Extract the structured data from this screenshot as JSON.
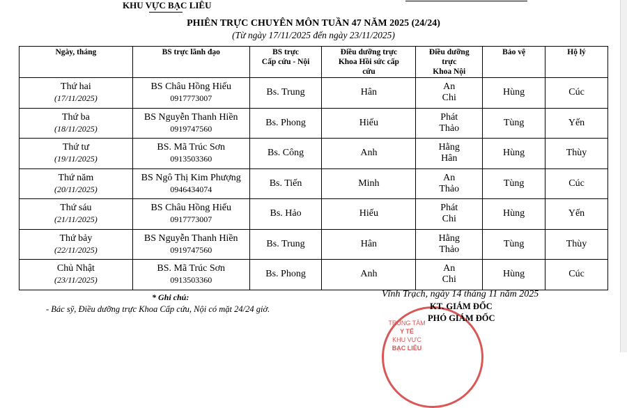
{
  "header": {
    "org": "KHU VỰC BẠC LIÊU",
    "title": "PHIÊN TRỰC CHUYÊN MÔN TUẦN 47 NĂM 2025 (24/24)",
    "subtitle": "(Từ ngày 17/11/2025 đến ngày 23/11/2025)"
  },
  "table": {
    "columns": [
      [
        "Ngày, tháng"
      ],
      [
        "BS trực lãnh đạo"
      ],
      [
        "BS trực",
        "Cấp cứu - Nội"
      ],
      [
        "Điều dưỡng trực",
        "Khoa Hồi sức cấp",
        "cứu"
      ],
      [
        "Điều dưỡng",
        "trực",
        "Khoa Nội"
      ],
      [
        "Bảo vệ"
      ],
      [
        "Hộ lý"
      ]
    ],
    "rows": [
      {
        "day": "Thứ hai",
        "date": "(17/11/2025)",
        "leader": "BS Châu Hồng Hiếu",
        "phone": "0917773007",
        "doctor": "Bs. Trung",
        "icu_nurse": "Hân",
        "nurse1": "An",
        "nurse2": "Chi",
        "guard": "Hùng",
        "aide": "Cúc"
      },
      {
        "day": "Thứ ba",
        "date": "(18/11/2025)",
        "leader": "BS Nguyễn Thanh Hiền",
        "phone": "0919747560",
        "doctor": "Bs. Phong",
        "icu_nurse": "Hiếu",
        "nurse1": "Phát",
        "nurse2": "Thảo",
        "guard": "Tùng",
        "aide": "Yến"
      },
      {
        "day": "Thứ tư",
        "date": "(19/11/2025)",
        "leader": "BS. Mã Trúc Sơn",
        "phone": "0913503360",
        "doctor": "Bs. Công",
        "icu_nurse": "Anh",
        "nurse1": "Hằng",
        "nurse2": "Hân",
        "guard": "Hùng",
        "aide": "Thùy"
      },
      {
        "day": "Thứ năm",
        "date": "(20/11/2025)",
        "leader": "BS Ngô Thị Kim Phượng",
        "phone": "0946434074",
        "doctor": "Bs. Tiến",
        "icu_nurse": "Minh",
        "nurse1": "An",
        "nurse2": "Thảo",
        "guard": "Tùng",
        "aide": "Cúc"
      },
      {
        "day": "Thứ sáu",
        "date": "(21/11/2025)",
        "leader": "BS Châu Hồng Hiếu",
        "phone": "0917773007",
        "doctor": "Bs. Hảo",
        "icu_nurse": "Hiếu",
        "nurse1": "Phát",
        "nurse2": "Chi",
        "guard": "Hùng",
        "aide": "Yến"
      },
      {
        "day": "Thứ bảy",
        "date": "(22/11/2025)",
        "leader": "BS Nguyễn Thanh Hiền",
        "phone": "0919747560",
        "doctor": "Bs. Trung",
        "icu_nurse": "Hân",
        "nurse1": "Hằng",
        "nurse2": "Thảo",
        "guard": "Tùng",
        "aide": "Thùy"
      },
      {
        "day": "Chủ Nhật",
        "date": "(23/11/2025)",
        "leader": "BS. Mã Trúc Sơn",
        "phone": "0913503360",
        "doctor": "Bs. Phong",
        "icu_nurse": "Anh",
        "nurse1": "An",
        "nurse2": "Chi",
        "guard": "Hùng",
        "aide": "Cúc"
      }
    ]
  },
  "notes": {
    "heading": "* Ghi chú:",
    "text": "- Bác sỹ, Điều dưỡng trực Khoa Cấp cứu, Nội có mặt 24/24 giờ."
  },
  "signature": {
    "place_date": "Vĩnh Trạch, ngày 14 tháng 11 năm 2025",
    "line1": "KT. GIÁM ĐỐC",
    "line2": "PHÓ GIÁM ĐỐC",
    "stamp_lines": [
      "TRUNG TÂM",
      "Y TẾ",
      "KHU VỰC",
      "BẠC LIÊU"
    ],
    "stamp_color": "#d23a3a"
  }
}
